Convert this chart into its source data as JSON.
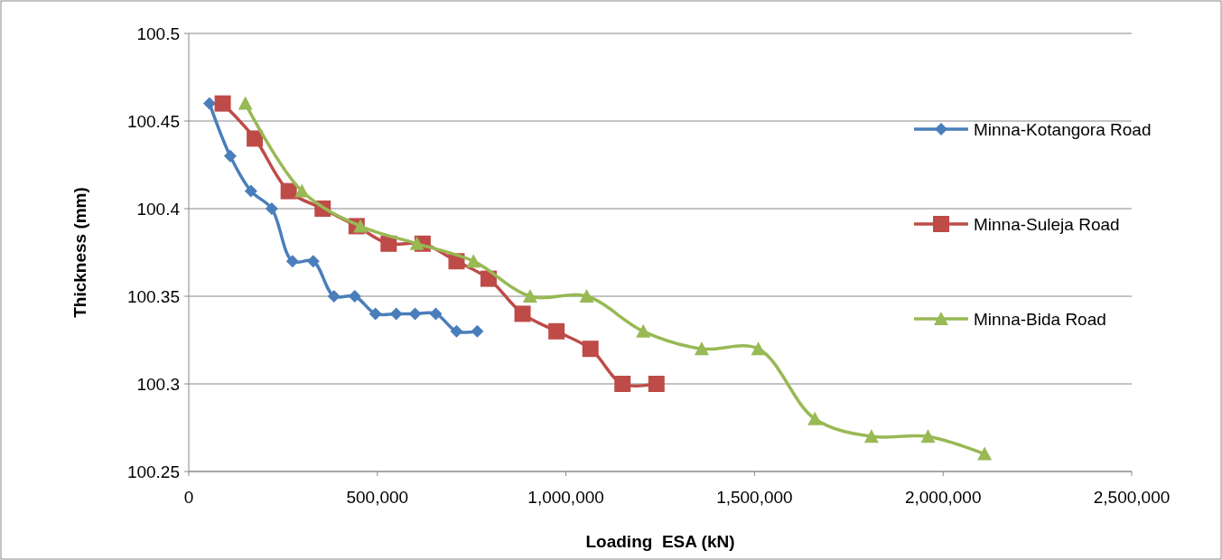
{
  "chart_data": {
    "type": "line",
    "xlabel": "Loading  ESA (kN)",
    "ylabel": "Thickness (mm)",
    "xlim": [
      0,
      2500000
    ],
    "xticks": [
      {
        "value": 0,
        "label": "0"
      },
      {
        "value": 500000,
        "label": "500,000"
      },
      {
        "value": 1000000,
        "label": "1,000,000"
      },
      {
        "value": 1500000,
        "label": "1,500,000"
      },
      {
        "value": 2000000,
        "label": "2,000,000"
      },
      {
        "value": 2500000,
        "label": "2,500,000"
      }
    ],
    "ylim": [
      100.25,
      100.5
    ],
    "yticks": [
      100.25,
      100.3,
      100.35,
      100.4,
      100.45,
      100.5
    ],
    "grid": "y",
    "legend": "right",
    "line_style": "solid",
    "series": [
      {
        "name": "Minna-Kotangora Road",
        "color": "#4a7ebb",
        "marker": "diamond",
        "x": [
          55000,
          110000,
          165000,
          220000,
          275000,
          330000,
          385000,
          440000,
          495000,
          550000,
          600000,
          655000,
          710000,
          765000
        ],
        "values": [
          100.46,
          100.43,
          100.41,
          100.4,
          100.37,
          100.37,
          100.35,
          100.35,
          100.34,
          100.34,
          100.34,
          100.34,
          100.33,
          100.33
        ]
      },
      {
        "name": "Minna-Suleja Road",
        "color": "#be4b48",
        "marker": "square",
        "x": [
          90000,
          175000,
          265000,
          355000,
          445000,
          530000,
          620000,
          710000,
          795000,
          885000,
          975000,
          1065000,
          1150000,
          1240000
        ],
        "values": [
          100.46,
          100.44,
          100.41,
          100.4,
          100.39,
          100.38,
          100.38,
          100.37,
          100.36,
          100.34,
          100.33,
          100.32,
          100.3,
          100.3
        ]
      },
      {
        "name": "Minna-Bida Road",
        "color": "#98b954",
        "marker": "triangle",
        "x": [
          150000,
          300000,
          455000,
          605000,
          755000,
          905000,
          1055000,
          1205000,
          1360000,
          1510000,
          1660000,
          1810000,
          1960000,
          2110000
        ],
        "values": [
          100.46,
          100.41,
          100.39,
          100.38,
          100.37,
          100.35,
          100.35,
          100.33,
          100.32,
          100.32,
          100.28,
          100.27,
          100.27,
          100.26
        ]
      }
    ]
  }
}
